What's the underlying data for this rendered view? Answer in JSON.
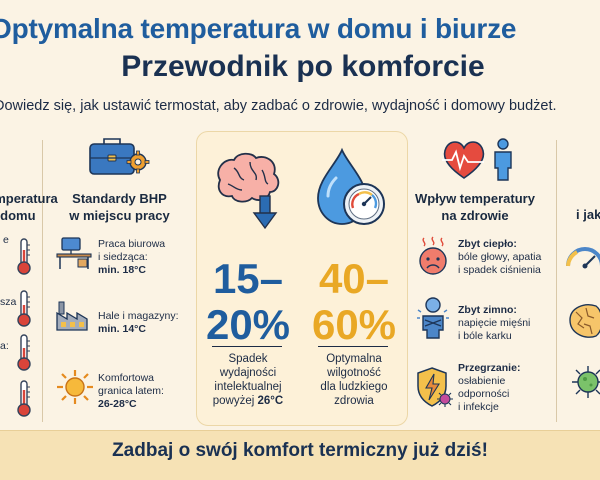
{
  "title_line1": "Optymalna temperatura w domu i biurze",
  "title_line2": "Przewodnik po komforcie",
  "subtitle": "Dowiedz się, jak ustawić termostat, aby zadbać o zdrowie, wydajność i domowy budżet.",
  "left_column": {
    "title_lines": [
      "Temperatura",
      "w domu"
    ],
    "fragments": [
      "e",
      "sza",
      "a:"
    ]
  },
  "work_column": {
    "title_lines": [
      "Standardy BHP",
      "w miejscu pracy"
    ],
    "items": [
      {
        "label_lines": [
          "Praca biurowa",
          "i siedząca:"
        ],
        "value": "min. 18°C"
      },
      {
        "label_lines": [
          "Hale i magazyny:"
        ],
        "value": "min. 14°C"
      },
      {
        "label_lines": [
          "Komfortowa",
          "granica latem:"
        ],
        "value": "26-28°C"
      }
    ]
  },
  "stat_productivity": {
    "value_lines": [
      "15–",
      "20%"
    ],
    "desc_lines": [
      "Spadek",
      "wydajności",
      "intelektualnej"
    ],
    "desc_last_prefix": "powyżej ",
    "desc_last_bold": "26°C"
  },
  "stat_humidity": {
    "value_lines": [
      "40–",
      "60%"
    ],
    "desc_lines": [
      "Optymalna",
      "wilgotność",
      "dla ludzkiego",
      "zdrowia"
    ]
  },
  "health_column": {
    "title_lines": [
      "Wpływ temperatury",
      "na zdrowie"
    ],
    "items": [
      {
        "heading": "Zbyt ciepło:",
        "lines": [
          "bóle głowy, apatia",
          "i spadek ciśnienia"
        ]
      },
      {
        "heading": "Zbyt zimno:",
        "lines": [
          "napięcie mięśni",
          "i bóle karku"
        ]
      },
      {
        "heading": "Przegrzanie:",
        "lines": [
          "osłabienie",
          "odporności",
          "i infekcje"
        ]
      }
    ]
  },
  "right_column": {
    "title_fragment": "i jak"
  },
  "banner": "Zadbaj o swój komfort termiczny już dziś!",
  "colors": {
    "blue_title": "#1f5d9e",
    "navy": "#1a3152",
    "blue_stat": "#1f5d9e",
    "gold_stat": "#e9a825",
    "background": "#fbf3e4",
    "banner": "#f6e2b5",
    "red": "#d9443a",
    "orange": "#f0a030"
  }
}
